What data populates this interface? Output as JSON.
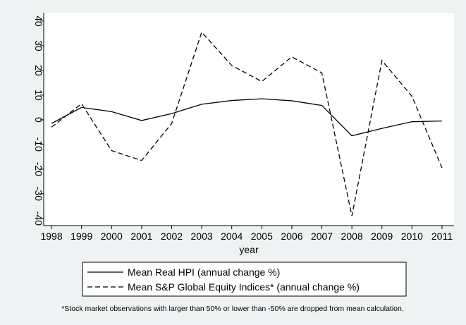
{
  "chart_data": {
    "type": "line",
    "x": [
      1998,
      1999,
      2000,
      2001,
      2002,
      2003,
      2004,
      2005,
      2006,
      2007,
      2008,
      2009,
      2010,
      2011
    ],
    "series": [
      {
        "name": "Mean Real HPI (annual change %)",
        "color": "#000000",
        "line_style": "solid",
        "values": [
          -1.5,
          5,
          3.3,
          -0.3,
          2.5,
          6.3,
          7.8,
          8.5,
          7.7,
          5.8,
          -6.5,
          -3.5,
          -0.8,
          -0.5
        ]
      },
      {
        "name": "Mean S&P Global Equity Indices* (annual change %)",
        "color": "#000000",
        "line_style": "dashed",
        "values": [
          -3,
          6.5,
          -12.5,
          -16.5,
          -1.5,
          35.5,
          22,
          15.5,
          25.5,
          19,
          -39,
          24,
          9.5,
          -19.5
        ]
      }
    ],
    "xlabel": "year",
    "xlim": [
      1997.74,
      2011.4
    ],
    "xticks": [
      1998,
      1999,
      2000,
      2001,
      2002,
      2003,
      2004,
      2005,
      2006,
      2007,
      2008,
      2009,
      2010,
      2011
    ],
    "ylim": [
      -42.9,
      43.4
    ],
    "yticks": [
      -40,
      -30,
      -20,
      -10,
      0,
      10,
      20,
      30,
      40
    ],
    "note": "*Stock market observations with larger than 50% or lower than -50% are dropped from mean calculation."
  }
}
